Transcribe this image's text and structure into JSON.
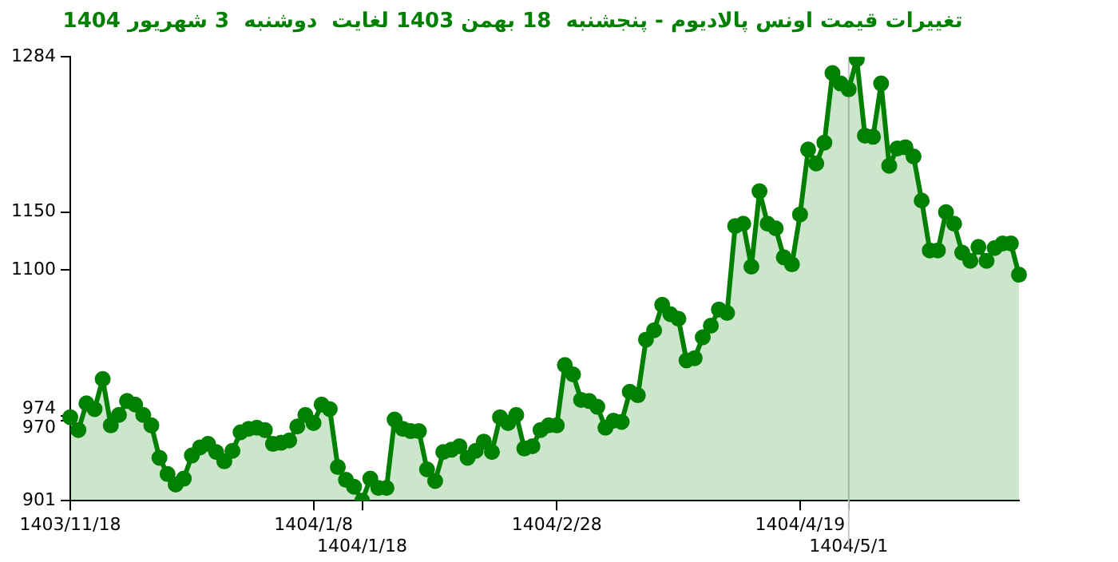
{
  "chart_data": {
    "type": "area",
    "title": "تغییرات قیمت اونس پالادیوم - پنجشنبه  18 بهمن 1403 لغایت  دوشنبه  3 شهریور 1404",
    "categories": [
      "1403/11/18",
      null,
      null,
      null,
      null,
      null,
      null,
      null,
      null,
      null,
      null,
      null,
      null,
      null,
      null,
      null,
      null,
      null,
      null,
      null,
      null,
      null,
      null,
      null,
      null,
      null,
      null,
      null,
      null,
      null,
      "1404/1/8",
      null,
      null,
      null,
      null,
      null,
      "1404/1/18",
      null,
      null,
      null,
      null,
      null,
      null,
      null,
      null,
      null,
      null,
      null,
      null,
      null,
      null,
      null,
      null,
      null,
      null,
      null,
      null,
      null,
      null,
      null,
      "1404/2/28",
      null,
      null,
      null,
      null,
      null,
      null,
      null,
      null,
      null,
      null,
      null,
      null,
      null,
      null,
      null,
      null,
      null,
      null,
      null,
      null,
      null,
      null,
      null,
      null,
      null,
      null,
      null,
      null,
      null,
      "1404/4/19",
      null,
      null,
      null,
      null,
      null,
      "1404/5/1",
      null,
      null,
      null,
      null,
      null,
      null,
      null,
      null,
      null,
      null,
      null,
      null,
      null,
      null,
      null,
      null,
      null,
      null,
      null,
      null,
      null
    ],
    "values": [
      973,
      962,
      985,
      980,
      1006,
      966,
      975,
      987,
      984,
      975,
      966,
      938,
      924,
      915,
      920,
      940,
      947,
      950,
      943,
      935,
      944,
      960,
      963,
      964,
      962,
      950,
      951,
      953,
      965,
      975,
      968,
      984,
      980,
      930,
      919,
      913,
      901,
      920,
      912,
      912,
      971,
      963,
      961,
      961,
      928,
      918,
      943,
      945,
      948,
      938,
      944,
      952,
      943,
      973,
      968,
      975,
      946,
      948,
      962,
      966,
      966,
      1018,
      1010,
      988,
      987,
      982,
      964,
      970,
      969,
      995,
      992,
      1040,
      1048,
      1070,
      1062,
      1058,
      1022,
      1024,
      1042,
      1052,
      1066,
      1063,
      1138,
      1140,
      1103,
      1168,
      1140,
      1136,
      1111,
      1105,
      1148,
      1204,
      1192,
      1210,
      1270,
      1261,
      1256,
      1282,
      1216,
      1215,
      1261,
      1190,
      1205,
      1206,
      1198,
      1160,
      1117,
      1117,
      1150,
      1140,
      1115,
      1108,
      1120,
      1108,
      1119,
      1123,
      1123,
      1096
    ],
    "color": "#008000",
    "marker": "circle",
    "ylim": [
      901,
      1284
    ],
    "yticks": [
      901,
      970,
      974,
      1100,
      1150,
      1284
    ],
    "ref_lines": [
      {
        "axis": "x",
        "value": "1404/5/1",
        "color": "#c8c8c8"
      }
    ]
  }
}
